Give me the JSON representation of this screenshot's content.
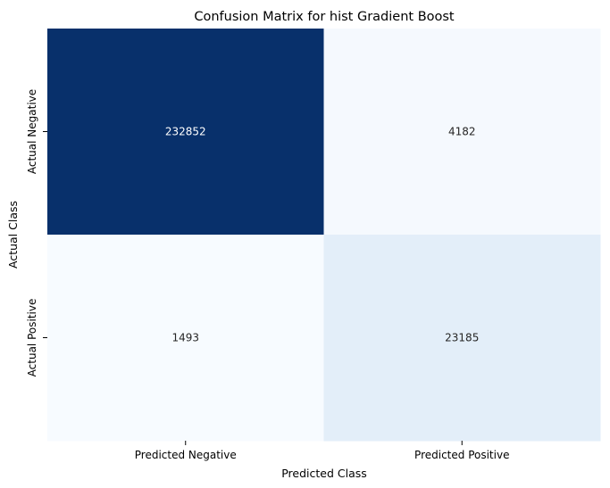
{
  "chart_data": {
    "type": "heatmap",
    "title": "Confusion Matrix for hist Gradient Boost",
    "xlabel": "Predicted Class",
    "ylabel": "Actual Class",
    "x_categories": [
      "Predicted Negative",
      "Predicted Positive"
    ],
    "y_categories": [
      "Actual Negative",
      "Actual Positive"
    ],
    "values": [
      [
        232852,
        4182
      ],
      [
        1493,
        23185
      ]
    ],
    "colormap": "Blues",
    "colorbar": false,
    "colors": {
      "232852": "#08306b",
      "23185": "#e3eef9",
      "4182": "#f5f9fe",
      "1493": "#f7fbff",
      "dark_text": "#262626",
      "light_text": "#ffffff"
    }
  }
}
